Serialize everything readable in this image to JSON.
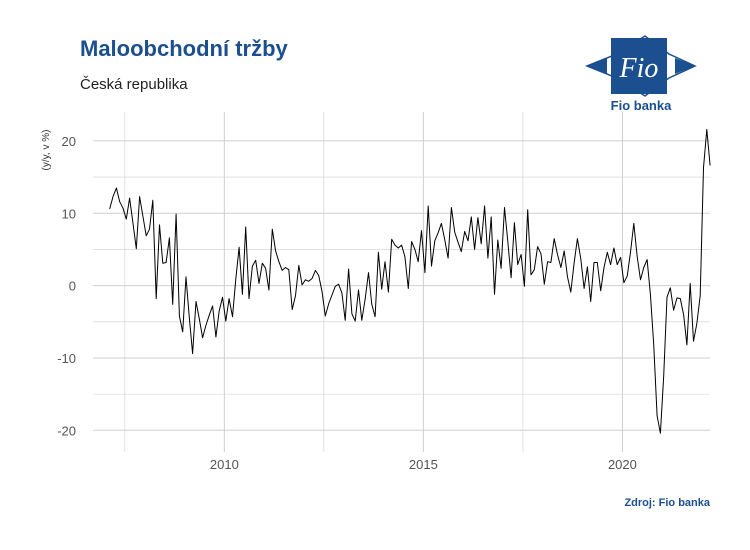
{
  "header": {
    "title": "Maloobchodní tržby",
    "subtitle": "Česká republika"
  },
  "logo": {
    "brand_text": "Fio",
    "name": "Fio banka",
    "icon": "fio-banka-logo-icon"
  },
  "footer": {
    "source": "Zdroj: Fio banka"
  },
  "colors": {
    "brand": "#1b4f8f",
    "line": "#000000",
    "grid": "#cfcfcf"
  },
  "chart_data": {
    "type": "line",
    "title": "Maloobchodní tržby",
    "subtitle": "Česká republika",
    "xlabel": "",
    "ylabel": "(y/y, v %)",
    "x_ticks": [
      2010,
      2015,
      2020
    ],
    "y_ticks": [
      -20,
      -10,
      0,
      10,
      20
    ],
    "xlim": [
      2006.7,
      2022.2
    ],
    "ylim": [
      -23,
      24
    ],
    "grid": true,
    "start": 2007.12,
    "step": 0.083333,
    "series": [
      {
        "values": [
          10.6,
          12.3,
          13.5,
          11.6,
          10.7,
          9.2,
          12.1,
          8.7,
          5.1,
          12.3,
          9.6,
          6.9,
          7.8,
          11.8,
          -1.8,
          8.4,
          3.1,
          3.2,
          6.6,
          -2.6,
          9.9,
          -4.2,
          -6.4,
          1.2,
          -4.4,
          -9.4,
          -2.2,
          -4.6,
          -7.2,
          -5.5,
          -4.1,
          -2.8,
          -7.1,
          -3.5,
          -1.6,
          -4.9,
          -1.8,
          -4.3,
          0.9,
          5.3,
          -1.2,
          8.1,
          -1.8,
          2.7,
          3.5,
          0.3,
          3.1,
          2.4,
          -0.6,
          7.8,
          4.8,
          3.3,
          2.1,
          2.5,
          2.2,
          -3.3,
          -1.4,
          2.8,
          0.1,
          0.8,
          0.6,
          1.0,
          2.1,
          1.4,
          -0.8,
          -4.2,
          -2.5,
          -1.3,
          -0.1,
          0.2,
          -1.0,
          -4.8,
          2.3,
          -3.9,
          -4.9,
          -0.6,
          -4.8,
          -1.9,
          1.8,
          -2.6,
          -4.3,
          4.6,
          -0.5,
          3.3,
          -0.9,
          6.4,
          5.6,
          5.2,
          5.6,
          4.0,
          -0.4,
          6.1,
          5.0,
          3.3,
          7.6,
          1.8,
          11.0,
          2.7,
          6.2,
          7.3,
          8.6,
          6.3,
          3.8,
          10.8,
          7.4,
          6.0,
          4.7,
          7.5,
          6.2,
          9.5,
          5.0,
          9.4,
          5.8,
          11.0,
          3.8,
          9.5,
          -1.2,
          6.3,
          2.4,
          10.8,
          6.1,
          1.1,
          8.7,
          2.9,
          4.3,
          -0.1,
          10.5,
          1.5,
          2.2,
          5.4,
          4.4,
          0.2,
          3.3,
          3.2,
          6.5,
          4.3,
          2.5,
          4.8,
          1.2,
          -0.9,
          3.1,
          6.5,
          3.7,
          -0.4,
          2.6,
          -2.2,
          3.2,
          3.2,
          -0.7,
          2.5,
          4.6,
          2.9,
          5.2,
          2.9,
          3.9,
          0.4,
          1.3,
          4.6,
          8.6,
          4.0,
          0.8,
          2.5,
          3.6,
          -1.2,
          -8.1,
          -18.0,
          -20.4,
          -12.5,
          -1.6,
          -0.3,
          -3.4,
          -1.7,
          -1.8,
          -4.0,
          -8.2,
          0.3,
          -7.7,
          -5.2,
          -1.4,
          16.3,
          21.6,
          16.6
        ]
      }
    ]
  }
}
